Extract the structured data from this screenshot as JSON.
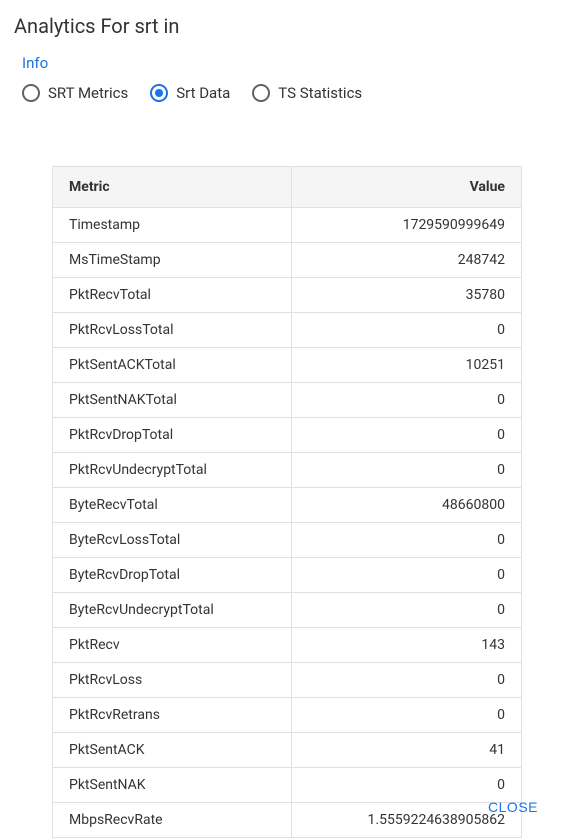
{
  "title": "Analytics For srt in",
  "info_link": "Info",
  "radios": [
    {
      "label": "SRT Metrics",
      "selected": false
    },
    {
      "label": "Srt Data",
      "selected": true
    },
    {
      "label": "TS Statistics",
      "selected": false
    }
  ],
  "table": {
    "headers": {
      "metric": "Metric",
      "value": "Value"
    },
    "rows": [
      {
        "metric": "Timestamp",
        "value": "1729590999649"
      },
      {
        "metric": "MsTimeStamp",
        "value": "248742"
      },
      {
        "metric": "PktRecvTotal",
        "value": "35780"
      },
      {
        "metric": "PktRcvLossTotal",
        "value": "0"
      },
      {
        "metric": "PktSentACKTotal",
        "value": "10251"
      },
      {
        "metric": "PktSentNAKTotal",
        "value": "0"
      },
      {
        "metric": "PktRcvDropTotal",
        "value": "0"
      },
      {
        "metric": "PktRcvUndecryptTotal",
        "value": "0"
      },
      {
        "metric": "ByteRecvTotal",
        "value": "48660800"
      },
      {
        "metric": "ByteRcvLossTotal",
        "value": "0"
      },
      {
        "metric": "ByteRcvDropTotal",
        "value": "0"
      },
      {
        "metric": "ByteRcvUndecryptTotal",
        "value": "0"
      },
      {
        "metric": "PktRecv",
        "value": "143"
      },
      {
        "metric": "PktRcvLoss",
        "value": "0"
      },
      {
        "metric": "PktRcvRetrans",
        "value": "0"
      },
      {
        "metric": "PktSentACK",
        "value": "41"
      },
      {
        "metric": "PktSentNAK",
        "value": "0"
      },
      {
        "metric": "MbpsRecvRate",
        "value": "1.5559224638905862"
      }
    ]
  },
  "close_label": "CLOSE"
}
